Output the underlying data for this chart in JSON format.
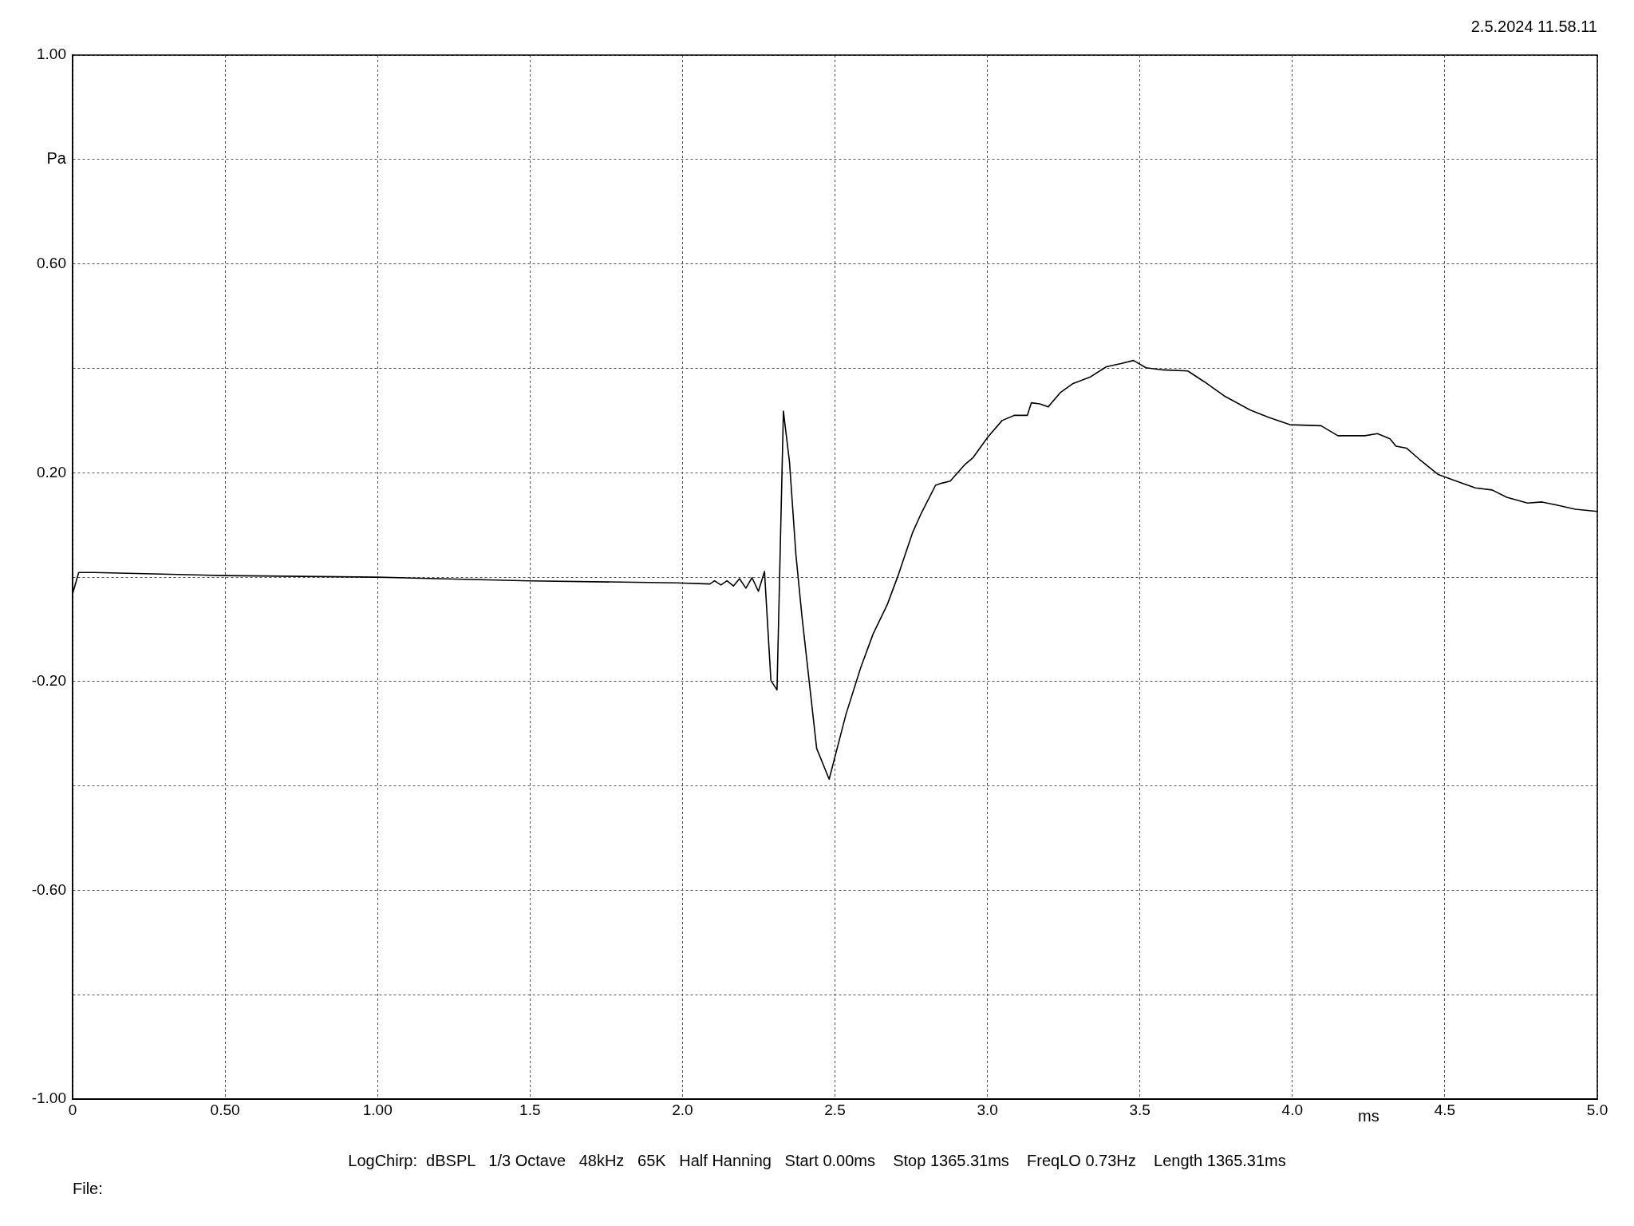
{
  "chart_data": {
    "type": "line",
    "xlabel": "ms",
    "ylabel": "Pa",
    "annotations": [
      "2.5.2024 11.58.11",
      "LogChirp:  dBSPL   1/3 Octave   48kHz   65K   Half Hanning   Start 0.00ms    Stop 1365.31ms    FreqLO 0.73Hz    Length 1365.31ms",
      "File:"
    ],
    "xlim": [
      0,
      5
    ],
    "ylim": [
      -1,
      1
    ],
    "xticks": [
      0,
      {
        "value": 0.5,
        "label": "0.50"
      },
      {
        "value": 1,
        "label": "1.00"
      },
      1.5,
      {
        "value": 2,
        "label": "2.0"
      },
      2.5,
      {
        "value": 3,
        "label": "3.0"
      },
      3.5,
      {
        "value": 4,
        "label": "4.0"
      },
      4.5,
      {
        "value": 5,
        "label": "5.0"
      }
    ],
    "yticks": [
      {
        "value": -1,
        "label": "-1.00"
      },
      {
        "value": -0.8,
        "label": null
      },
      {
        "value": -0.6,
        "label": "-0.60"
      },
      {
        "value": -0.4,
        "label": null
      },
      {
        "value": -0.2,
        "label": "-0.20"
      },
      {
        "value": 0,
        "label": null
      },
      {
        "value": 0.2,
        "label": "0.20"
      },
      {
        "value": 0.4,
        "label": null
      },
      {
        "value": 0.6,
        "label": "0.60"
      },
      {
        "value": 0.8,
        "label": null
      },
      {
        "value": 1,
        "label": "1.00"
      }
    ],
    "grid": true,
    "series": [
      {
        "color": "#000000",
        "x": [
          0,
          0.02,
          0.07,
          0.5,
          1.0,
          1.5,
          1.98,
          2.09,
          2.105,
          2.126,
          2.146,
          2.167,
          2.187,
          2.208,
          2.228,
          2.249,
          2.269,
          2.29,
          2.31,
          2.331,
          2.351,
          2.372,
          2.392,
          2.44,
          2.481,
          2.536,
          2.584,
          2.625,
          2.672,
          2.707,
          2.755,
          2.782,
          2.83,
          2.85,
          2.878,
          2.925,
          2.953,
          3.001,
          3.048,
          3.089,
          3.131,
          3.144,
          3.172,
          3.199,
          3.24,
          3.281,
          3.336,
          3.39,
          3.438,
          3.479,
          3.52,
          3.575,
          3.657,
          3.712,
          3.78,
          3.862,
          3.923,
          3.992,
          4.094,
          4.149,
          4.238,
          4.279,
          4.32,
          4.34,
          4.375,
          4.416,
          4.477,
          4.532,
          4.6,
          4.655,
          4.703,
          4.771,
          4.819,
          4.867,
          4.928,
          5.0
        ],
        "values": [
          -0.032,
          0.009,
          0.009,
          0.003,
          0.0,
          -0.007,
          -0.011,
          -0.013,
          -0.007,
          -0.015,
          -0.007,
          -0.017,
          -0.003,
          -0.021,
          -0.001,
          -0.027,
          0.011,
          -0.198,
          -0.216,
          0.318,
          0.22,
          0.043,
          -0.076,
          -0.328,
          -0.387,
          -0.263,
          -0.174,
          -0.109,
          -0.052,
          0.003,
          0.086,
          0.121,
          0.176,
          0.18,
          0.184,
          0.215,
          0.229,
          0.268,
          0.3,
          0.31,
          0.31,
          0.334,
          0.332,
          0.326,
          0.354,
          0.371,
          0.383,
          0.403,
          0.409,
          0.415,
          0.401,
          0.397,
          0.395,
          0.374,
          0.346,
          0.32,
          0.306,
          0.292,
          0.29,
          0.271,
          0.271,
          0.275,
          0.265,
          0.251,
          0.247,
          0.226,
          0.197,
          0.185,
          0.171,
          0.167,
          0.153,
          0.142,
          0.144,
          0.138,
          0.13,
          0.126
        ]
      }
    ]
  }
}
